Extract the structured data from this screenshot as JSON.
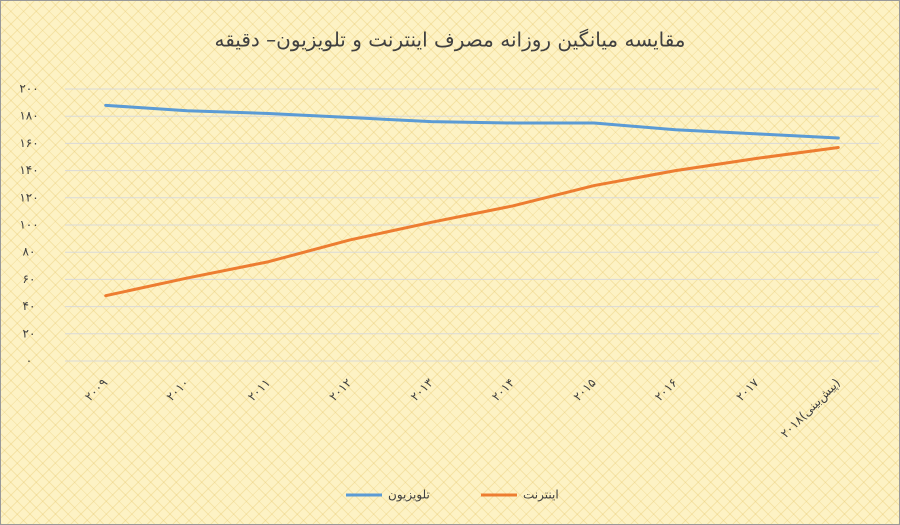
{
  "chart_data": {
    "type": "line",
    "title": "مقایسه میانگین روزانه مصرف اینترنت و تلویزیون– دقیقه",
    "categories": [
      "۲۰۰۹",
      "۲۰۱۰",
      "۲۰۱۱",
      "۲۰۱۲",
      "۲۰۱۳",
      "۲۰۱۴",
      "۲۰۱۵",
      "۲۰۱۶",
      "۲۰۱۷",
      "۲۰۱۸(پیش‌بینی)"
    ],
    "series": [
      {
        "name": "تلویزیون",
        "color": "#5b9bd5",
        "values": [
          188,
          184,
          182,
          179,
          176,
          175,
          175,
          170,
          167,
          164
        ]
      },
      {
        "name": "اینترنت",
        "color": "#ed7d31",
        "values": [
          48,
          61,
          73,
          89,
          102,
          114,
          129,
          140,
          149,
          157
        ]
      }
    ],
    "ylim": [
      0,
      200
    ],
    "yticks": [
      {
        "value": 0,
        "label": "۰"
      },
      {
        "value": 20,
        "label": "۲۰"
      },
      {
        "value": 40,
        "label": "۴۰"
      },
      {
        "value": 60,
        "label": "۶۰"
      },
      {
        "value": 80,
        "label": "۸۰"
      },
      {
        "value": 100,
        "label": "۱۰۰"
      },
      {
        "value": 120,
        "label": "۱۲۰"
      },
      {
        "value": 140,
        "label": "۱۴۰"
      },
      {
        "value": 160,
        "label": "۱۶۰"
      },
      {
        "value": 180,
        "label": "۱۸۰"
      },
      {
        "value": 200,
        "label": "۲۰۰"
      }
    ],
    "grid": true,
    "legend": "bottom"
  }
}
